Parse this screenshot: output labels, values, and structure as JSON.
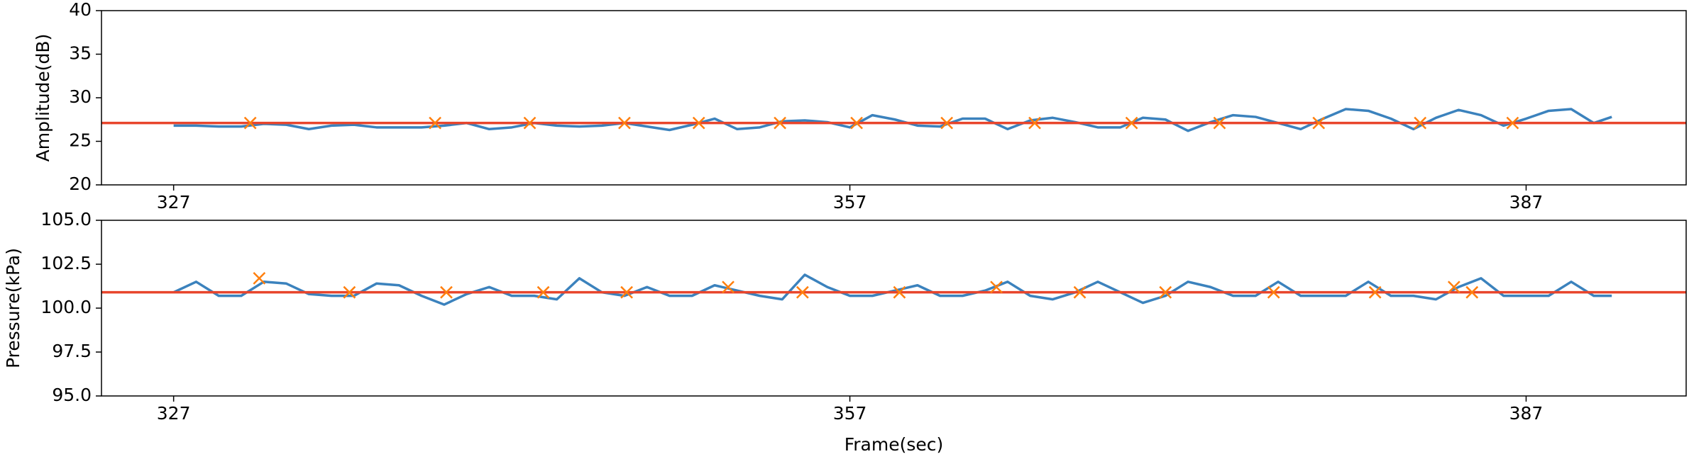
{
  "chart_data": [
    {
      "type": "line",
      "ylabel": "Amplitude(dB)",
      "xlim": [
        323.8,
        394.1
      ],
      "xticks": [
        327,
        357,
        387
      ],
      "ylim": [
        20,
        40
      ],
      "yticks": [
        20,
        25,
        30,
        35,
        40
      ],
      "hline": {
        "value": 27.1,
        "color": "#e8452c"
      },
      "series": [
        {
          "style": "line",
          "color": "#3b82bd",
          "x": [
            327,
            328,
            329,
            330,
            331,
            332,
            333,
            334,
            335,
            336,
            337,
            338,
            339,
            340,
            341,
            342,
            343,
            344,
            345,
            346,
            347,
            348,
            349,
            350,
            351,
            352,
            353,
            354,
            355,
            356,
            357,
            358,
            359,
            360,
            361,
            362,
            363,
            364,
            365,
            366,
            367,
            368,
            369,
            370,
            371,
            372,
            373,
            374,
            375,
            376,
            377,
            378,
            379,
            380,
            381,
            382,
            383,
            384,
            385,
            386,
            387,
            388,
            389,
            390,
            390.8
          ],
          "values": [
            26.8,
            26.8,
            26.7,
            26.7,
            27.0,
            26.9,
            26.4,
            26.8,
            26.9,
            26.6,
            26.6,
            26.6,
            26.8,
            27.1,
            26.4,
            26.6,
            27.1,
            26.8,
            26.7,
            26.8,
            27.1,
            26.7,
            26.3,
            26.9,
            27.6,
            26.4,
            26.6,
            27.3,
            27.4,
            27.2,
            26.6,
            28.0,
            27.5,
            26.8,
            26.7,
            27.6,
            27.6,
            26.4,
            27.4,
            27.7,
            27.2,
            26.6,
            26.6,
            27.7,
            27.5,
            26.2,
            27.2,
            28.0,
            27.8,
            27.1,
            26.4,
            27.6,
            28.7,
            28.5,
            27.6,
            26.4,
            27.7,
            28.6,
            28.0,
            26.8,
            27.6,
            28.5,
            28.7,
            27.1,
            27.8
          ]
        },
        {
          "style": "marker",
          "color": "#ff7f0e",
          "x": [
            330.4,
            338.6,
            342.8,
            347.0,
            350.3,
            353.9,
            357.3,
            361.3,
            365.2,
            369.5,
            373.4,
            377.8,
            382.3,
            386.4
          ],
          "values": [
            27.1,
            27.1,
            27.1,
            27.1,
            27.1,
            27.1,
            27.1,
            27.1,
            27.1,
            27.1,
            27.1,
            27.1,
            27.1,
            27.1
          ]
        }
      ]
    },
    {
      "type": "line",
      "ylabel": "Pressure(kPa)",
      "xlabel": "Frame(sec)",
      "xlim": [
        323.8,
        394.1
      ],
      "xticks": [
        327,
        357,
        387
      ],
      "ylim": [
        95,
        105
      ],
      "yticks": [
        {
          "value": 95,
          "label": "95.0"
        },
        {
          "value": 97.5,
          "label": "97.5"
        },
        {
          "value": 100,
          "label": "100.0"
        },
        {
          "value": 102.5,
          "label": "102.5"
        },
        {
          "value": 105,
          "label": "105.0"
        }
      ],
      "hline": {
        "value": 100.9,
        "color": "#e8452c"
      },
      "series": [
        {
          "style": "line",
          "color": "#3b82bd",
          "x": [
            327,
            328,
            329,
            330,
            331,
            332,
            333,
            334,
            335,
            336,
            337,
            338,
            339,
            340,
            341,
            342,
            343,
            344,
            345,
            346,
            347,
            348,
            349,
            350,
            351,
            352,
            353,
            354,
            355,
            356,
            357,
            358,
            359,
            360,
            361,
            362,
            363,
            364,
            365,
            366,
            367,
            368,
            369,
            370,
            371,
            372,
            373,
            374,
            375,
            376,
            377,
            378,
            379,
            380,
            381,
            382,
            383,
            384,
            385,
            386,
            387,
            388,
            389,
            390,
            390.8
          ],
          "values": [
            100.9,
            101.5,
            100.7,
            100.7,
            101.5,
            101.4,
            100.8,
            100.7,
            100.7,
            101.4,
            101.3,
            100.7,
            100.2,
            100.8,
            101.2,
            100.7,
            100.7,
            100.5,
            101.7,
            100.9,
            100.7,
            101.2,
            100.7,
            100.7,
            101.3,
            101.0,
            100.7,
            100.5,
            101.9,
            101.2,
            100.7,
            100.7,
            101.0,
            101.3,
            100.7,
            100.7,
            101.0,
            101.5,
            100.7,
            100.5,
            100.9,
            101.5,
            100.9,
            100.3,
            100.7,
            101.5,
            101.2,
            100.7,
            100.7,
            101.5,
            100.7,
            100.7,
            100.7,
            101.5,
            100.7,
            100.7,
            100.5,
            101.2,
            101.7,
            100.7,
            100.7,
            100.7,
            101.5,
            100.7,
            100.7
          ]
        },
        {
          "style": "marker",
          "color": "#ff7f0e",
          "x": [
            330.8,
            334.8,
            339.1,
            343.4,
            347.1,
            351.6,
            354.9,
            359.2,
            363.5,
            367.2,
            371.0,
            375.8,
            380.3,
            383.8,
            384.6
          ],
          "values": [
            101.7,
            100.9,
            100.9,
            100.9,
            100.9,
            101.2,
            100.9,
            100.9,
            101.2,
            100.9,
            100.9,
            100.9,
            100.9,
            101.2,
            100.9
          ]
        }
      ]
    }
  ]
}
